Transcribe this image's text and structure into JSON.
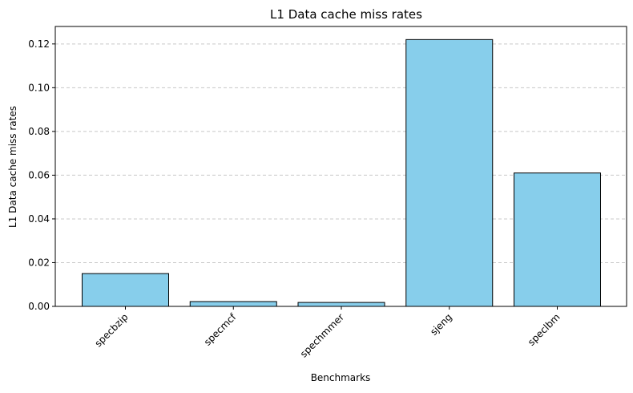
{
  "chart_data": {
    "type": "bar",
    "title": "L1 Data cache miss rates",
    "xlabel": "Benchmarks",
    "ylabel": "L1 Data cache miss rates",
    "categories": [
      "specbzip",
      "specmcf",
      "spechmmer",
      "sjeng",
      "speclbm"
    ],
    "values": [
      0.015,
      0.0022,
      0.0018,
      0.122,
      0.061
    ],
    "ylim": [
      0,
      0.128
    ],
    "yticks": [
      0.0,
      0.02,
      0.04,
      0.06,
      0.08,
      0.1,
      0.12
    ],
    "ytick_labels": [
      "0.00",
      "0.02",
      "0.04",
      "0.06",
      "0.08",
      "0.10",
      "0.12"
    ],
    "grid": "y-dashed",
    "bar_color": "#87ceeb",
    "bar_edge_color": "#000000"
  }
}
